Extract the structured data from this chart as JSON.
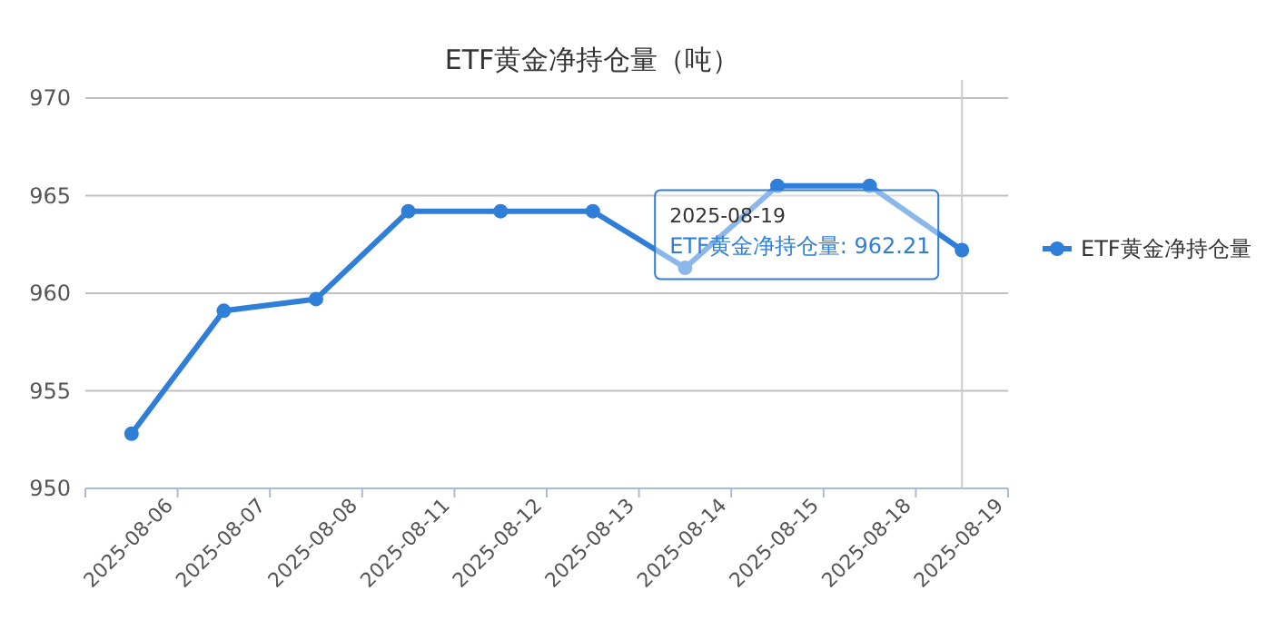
{
  "chart_data": {
    "type": "line",
    "title": "ETF黄金净持仓量（吨）",
    "categories": [
      "2025-08-06",
      "2025-08-07",
      "2025-08-08",
      "2025-08-11",
      "2025-08-12",
      "2025-08-13",
      "2025-08-14",
      "2025-08-15",
      "2025-08-18",
      "2025-08-19"
    ],
    "series": [
      {
        "name": "ETF黄金净持仓量",
        "color": "#2f7ed8",
        "values": [
          952.8,
          959.1,
          959.7,
          964.2,
          964.2,
          964.2,
          961.3,
          965.5,
          965.5,
          962.21
        ]
      }
    ],
    "ylim": [
      950,
      970
    ],
    "yticks": [
      950,
      955,
      960,
      965,
      970
    ],
    "grid": "y",
    "legend": "right",
    "marker": "circle",
    "line_style": "solid",
    "ref_lines": [
      {
        "axis": "x",
        "value": "2025-08-19",
        "color": "#cccccc"
      }
    ],
    "annotations": [
      {
        "text": "2025-08-19\nETF黄金净持仓量: 962.21",
        "x": "2025-08-19",
        "y": 962.21
      }
    ]
  }
}
